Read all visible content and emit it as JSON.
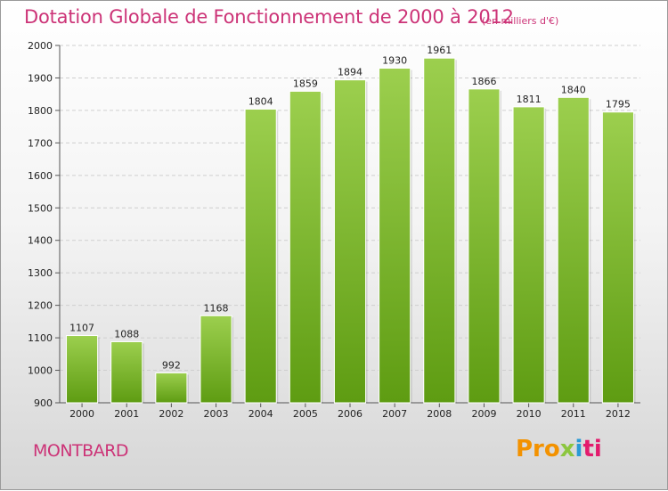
{
  "chart_data": {
    "type": "bar",
    "title": "Dotation Globale de Fonctionnement de 2000 à 2012",
    "unit_label": "(en milliers d'€)",
    "categories": [
      "2000",
      "2001",
      "2002",
      "2003",
      "2004",
      "2005",
      "2006",
      "2007",
      "2008",
      "2009",
      "2010",
      "2011",
      "2012"
    ],
    "values": [
      1107,
      1088,
      992,
      1168,
      1804,
      1859,
      1894,
      1930,
      1961,
      1866,
      1811,
      1840,
      1795
    ],
    "ylim": [
      900,
      2000
    ],
    "yticks": [
      "900",
      "1000",
      "1100",
      "1200",
      "1300",
      "1400",
      "1500",
      "1600",
      "1700",
      "1800",
      "1900",
      "2000"
    ],
    "grid": true,
    "bar_color_top": "#9ccf4e",
    "bar_color_bottom": "#5e9c12"
  },
  "place_name": "MONTBARD",
  "logo": {
    "part1": "Pro",
    "part2": "x",
    "part3": "i",
    "part4": "ti",
    "colors": [
      "#f39200",
      "#8cc63f",
      "#2a9ad6",
      "#e31b6d"
    ]
  }
}
